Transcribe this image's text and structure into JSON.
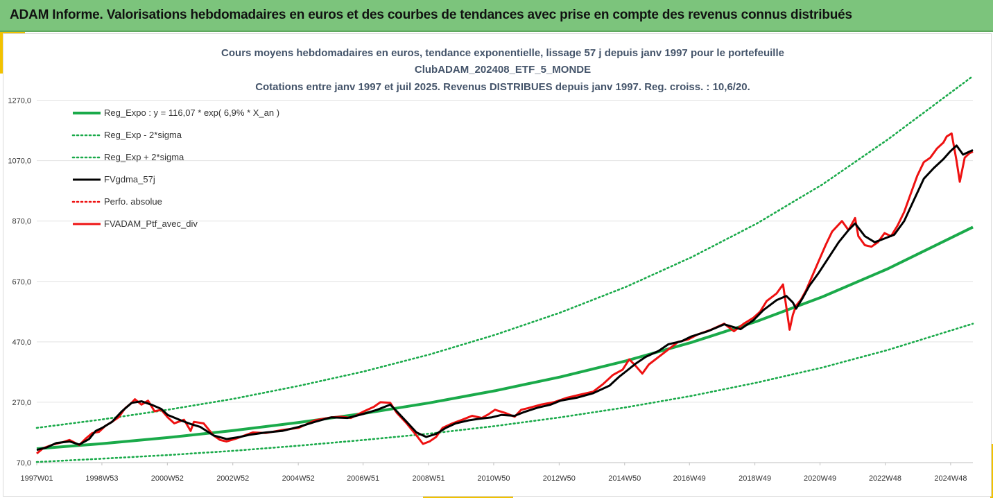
{
  "banner": {
    "title": "ADAM Informe. Valorisations hebdomadaires en euros et des courbes de tendances avec prise en compte des revenus connus distribués"
  },
  "colors": {
    "banner_bg": "#7cc47c",
    "accent": "#f2c200",
    "trend": "#1aaa4a",
    "smooth": "#000000",
    "price": "#ee1111"
  },
  "chart_data": {
    "type": "line",
    "title_lines": [
      "Cours moyens hebdomadaires  en euros, tendance exponentielle, lissage 57 j depuis janv 1997 pour le portefeuille",
      "ClubADAM_202408_ETF_5_MONDE",
      "Cotations  entre janv 1997 et juil 2025. Revenus DISTRIBUES depuis janv 1997. Reg. croiss. : 10,6/20."
    ],
    "xlabel": "",
    "ylabel": "",
    "x_range": [
      1997.0,
      2025.6
    ],
    "ylim": [
      70,
      1370
    ],
    "y_ticks": [
      70,
      270,
      470,
      670,
      870,
      1070,
      1270
    ],
    "y_tick_labels": [
      "70,0",
      "270,0",
      "470,0",
      "670,0",
      "870,0",
      "1070,0",
      "1270,0"
    ],
    "x_ticks": [
      1997.0,
      1998.99,
      2000.99,
      2002.99,
      2004.99,
      2006.97,
      2008.97,
      2010.96,
      2012.96,
      2014.96,
      2016.94,
      2018.94,
      2020.93,
      2022.92,
      2024.92
    ],
    "x_tick_labels": [
      "1997W01",
      "1998W53",
      "2000W52",
      "2002W52",
      "2004W52",
      "2006W51",
      "2008W51",
      "2010W50",
      "2012W50",
      "2014W50",
      "2016W49",
      "2018W49",
      "2020W49",
      "2022W48",
      "2024W48"
    ],
    "grid": "horizontal",
    "legend_position": "top-left",
    "series": [
      {
        "name": "Reg_Expo : y = 116,07 * exp( 6,9% *  X_an )",
        "style": "solid",
        "color": "#1aaa4a",
        "x": [
          1997,
          1999,
          2001,
          2003,
          2005,
          2007,
          2009,
          2011,
          2013,
          2015,
          2017,
          2019,
          2021,
          2023,
          2025.6
        ],
        "values": [
          116,
          133,
          153,
          176,
          203,
          233,
          268,
          308,
          354,
          407,
          468,
          538,
          619,
          712,
          850
        ]
      },
      {
        "name": "Reg_Exp - 2*sigma",
        "style": "dotted",
        "color": "#1aaa4a",
        "x": [
          1997,
          1999,
          2001,
          2003,
          2005,
          2007,
          2009,
          2011,
          2013,
          2015,
          2017,
          2019,
          2021,
          2023,
          2025.6
        ],
        "values": [
          72,
          83,
          95,
          109,
          126,
          145,
          166,
          191,
          220,
          253,
          291,
          335,
          385,
          443,
          530
        ]
      },
      {
        "name": "Reg_Exp + 2*sigma",
        "style": "dotted",
        "color": "#1aaa4a",
        "x": [
          1997,
          1999,
          2001,
          2003,
          2005,
          2007,
          2009,
          2011,
          2013,
          2015,
          2017,
          2019,
          2021,
          2023,
          2025.6
        ],
        "values": [
          185,
          213,
          245,
          281,
          324,
          372,
          428,
          493,
          567,
          652,
          750,
          862,
          991,
          1140,
          1350
        ]
      },
      {
        "name": "FVgdma_57j",
        "style": "solid-thick",
        "color": "#000000",
        "x": [
          1997.0,
          1997.3,
          1997.6,
          1998.0,
          1998.3,
          1998.6,
          1998.8,
          1999.0,
          1999.3,
          1999.6,
          1999.9,
          2000.2,
          2000.5,
          2000.8,
          2001.0,
          2001.4,
          2001.7,
          2002.0,
          2002.4,
          2002.8,
          2003.2,
          2003.5,
          2004.0,
          2004.5,
          2005.0,
          2005.5,
          2006.0,
          2006.5,
          2007.0,
          2007.4,
          2007.8,
          2008.0,
          2008.3,
          2008.6,
          2008.9,
          2009.2,
          2009.5,
          2009.8,
          2010.2,
          2010.5,
          2010.9,
          2011.2,
          2011.6,
          2011.9,
          2012.3,
          2012.7,
          2013.0,
          2013.5,
          2014.0,
          2014.5,
          2014.8,
          2015.0,
          2015.3,
          2015.6,
          2016.0,
          2016.3,
          2016.7,
          2017.0,
          2017.5,
          2018.0,
          2018.5,
          2018.9,
          2019.2,
          2019.6,
          2019.9,
          2020.1,
          2020.2,
          2020.4,
          2020.6,
          2020.9,
          2021.2,
          2021.5,
          2021.8,
          2022.0,
          2022.3,
          2022.6,
          2022.9,
          2023.2,
          2023.5,
          2023.8,
          2024.1,
          2024.4,
          2024.7,
          2024.9,
          2025.1,
          2025.3,
          2025.6
        ],
        "values": [
          112,
          120,
          135,
          140,
          130,
          148,
          175,
          185,
          205,
          240,
          268,
          273,
          262,
          248,
          228,
          210,
          198,
          188,
          160,
          148,
          155,
          162,
          170,
          175,
          188,
          205,
          220,
          218,
          232,
          245,
          262,
          240,
          205,
          170,
          155,
          165,
          185,
          200,
          210,
          215,
          220,
          228,
          225,
          238,
          252,
          262,
          275,
          285,
          300,
          325,
          355,
          372,
          398,
          420,
          440,
          462,
          472,
          488,
          505,
          528,
          512,
          542,
          575,
          608,
          622,
          600,
          580,
          615,
          655,
          700,
          750,
          800,
          840,
          862,
          820,
          800,
          812,
          825,
          870,
          940,
          1010,
          1045,
          1075,
          1100,
          1120,
          1090,
          1105
        ]
      },
      {
        "name": "Perfo. absolue",
        "style": "dotted",
        "color": "#ee1111",
        "x": [],
        "values": []
      },
      {
        "name": "FVADAM_Ptf_avec_div",
        "style": "solid-thick",
        "color": "#ee1111",
        "x": [
          1997.0,
          1997.2,
          1997.5,
          1997.8,
          1998.0,
          1998.3,
          1998.5,
          1998.7,
          1998.9,
          1999.1,
          1999.3,
          1999.5,
          1999.7,
          1999.9,
          2000.0,
          2000.2,
          2000.4,
          2000.6,
          2000.8,
          2001.0,
          2001.2,
          2001.5,
          2001.7,
          2001.8,
          2002.1,
          2002.4,
          2002.6,
          2002.8,
          2003.1,
          2003.3,
          2003.6,
          2004.0,
          2004.5,
          2005.0,
          2005.5,
          2006.0,
          2006.3,
          2006.6,
          2007.0,
          2007.3,
          2007.5,
          2007.8,
          2008.0,
          2008.3,
          2008.6,
          2008.8,
          2009.0,
          2009.2,
          2009.4,
          2009.7,
          2010.0,
          2010.3,
          2010.6,
          2010.8,
          2011.0,
          2011.3,
          2011.6,
          2011.8,
          2012.0,
          2012.4,
          2012.8,
          2013.2,
          2013.6,
          2014.0,
          2014.3,
          2014.6,
          2014.9,
          2015.1,
          2015.3,
          2015.5,
          2015.7,
          2016.0,
          2016.3,
          2016.6,
          2016.9,
          2017.2,
          2017.6,
          2018.0,
          2018.3,
          2018.6,
          2018.9,
          2019.1,
          2019.3,
          2019.6,
          2019.8,
          2020.0,
          2020.1,
          2020.2,
          2020.35,
          2020.5,
          2020.7,
          2020.9,
          2021.1,
          2021.3,
          2021.6,
          2021.8,
          2022.0,
          2022.1,
          2022.3,
          2022.5,
          2022.7,
          2022.9,
          2023.1,
          2023.3,
          2023.5,
          2023.7,
          2023.9,
          2024.1,
          2024.3,
          2024.5,
          2024.7,
          2024.8,
          2024.95,
          2025.1,
          2025.2,
          2025.35,
          2025.5,
          2025.6
        ],
        "values": [
          100,
          118,
          130,
          138,
          145,
          128,
          150,
          168,
          172,
          192,
          205,
          220,
          250,
          268,
          280,
          262,
          275,
          240,
          245,
          220,
          200,
          212,
          175,
          205,
          200,
          160,
          145,
          140,
          150,
          158,
          170,
          168,
          178,
          185,
          210,
          220,
          222,
          218,
          240,
          255,
          270,
          268,
          235,
          200,
          160,
          132,
          140,
          155,
          185,
          200,
          212,
          225,
          218,
          230,
          245,
          235,
          222,
          245,
          250,
          262,
          270,
          285,
          295,
          305,
          330,
          360,
          378,
          412,
          390,
          365,
          395,
          420,
          445,
          470,
          478,
          495,
          510,
          530,
          505,
          530,
          550,
          570,
          605,
          630,
          660,
          510,
          560,
          590,
          610,
          640,
          690,
          740,
          790,
          835,
          870,
          840,
          880,
          820,
          790,
          785,
          800,
          830,
          820,
          855,
          900,
          960,
          1020,
          1065,
          1080,
          1110,
          1130,
          1150,
          1160,
          1070,
          1000,
          1080,
          1095,
          1100
        ]
      }
    ]
  }
}
